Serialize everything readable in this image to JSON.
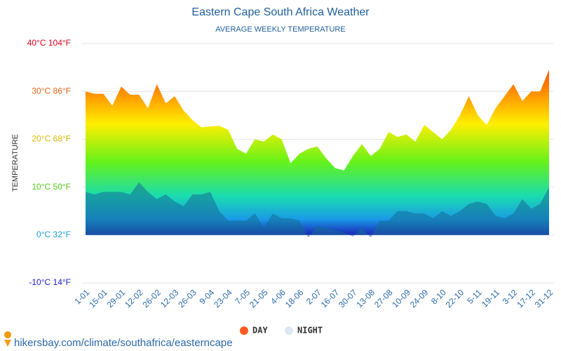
{
  "chart_data": {
    "type": "area",
    "title": "Eastern Cape South Africa Weather",
    "subtitle": "AVERAGE WEEKLY TEMPERATURE",
    "y_label": "TEMPERATURE",
    "source": "hikersbay.com/climate/southafrica/easterncape",
    "categories": [
      "1-01",
      null,
      "15-01",
      null,
      "29-01",
      null,
      "12-02",
      null,
      "26-02",
      null,
      "12-03",
      null,
      "26-03",
      null,
      "9-04",
      null,
      "23-04",
      null,
      "7-05",
      null,
      "21-05",
      null,
      "4-06",
      null,
      "18-06",
      null,
      "2-07",
      null,
      "16-07",
      null,
      "30-07",
      null,
      "13-08",
      null,
      "27-08",
      null,
      "10-09",
      null,
      "24-09",
      null,
      "8-10",
      null,
      "22-10",
      null,
      "5-11",
      null,
      "19-11",
      null,
      "3-12",
      null,
      "17-12",
      null,
      "31-12"
    ],
    "series": [
      {
        "name": "DAY",
        "color": "#ff5a1f",
        "values": [
          30,
          29.5,
          29.5,
          27,
          31,
          29.3,
          29.3,
          26.5,
          31.5,
          27.5,
          29,
          26,
          24,
          22.5,
          22.7,
          22.8,
          22,
          18,
          17,
          20,
          19.5,
          21,
          20,
          15,
          17,
          18,
          18.5,
          16,
          14,
          13.5,
          16.5,
          19,
          16.5,
          18,
          21.5,
          20.5,
          21,
          19.5,
          23,
          21.5,
          20,
          22,
          25,
          29,
          25,
          23,
          26.5,
          29,
          31.5,
          28,
          30,
          30,
          34.5
        ]
      },
      {
        "name": "NIGHT",
        "color": "#dde8f3",
        "values": [
          9,
          8.5,
          9,
          9,
          9,
          8.5,
          11,
          9,
          7.5,
          8.5,
          7,
          6,
          8.5,
          8.5,
          9,
          5,
          3,
          3,
          3,
          4.5,
          1.5,
          4.5,
          3.5,
          3.5,
          3,
          -0.5,
          2,
          1.5,
          1,
          0.5,
          -0.3,
          1.5,
          -0.5,
          3,
          3,
          5,
          5,
          4.5,
          4.5,
          3.5,
          5,
          4,
          5,
          6.5,
          7,
          6.5,
          4,
          3.5,
          4.5,
          7.5,
          5.5,
          6.5,
          10
        ]
      }
    ],
    "ylim": [
      -10,
      40
    ],
    "yticks": [
      {
        "value": -10,
        "label": "-10°C 14°F"
      },
      {
        "value": 0,
        "label": "0°C 32°F"
      },
      {
        "value": 10,
        "label": "10°C 50°F"
      },
      {
        "value": 20,
        "label": "20°C 68°F"
      },
      {
        "value": 30,
        "label": "30°C 86°F"
      },
      {
        "value": 40,
        "label": "40°C 104°F"
      }
    ],
    "ytick_colors": [
      "#1a1acc",
      "#1a9ad6",
      "#4fc91a",
      "#d6b800",
      "#e0631a",
      "#e0001a"
    ],
    "grid": true
  }
}
